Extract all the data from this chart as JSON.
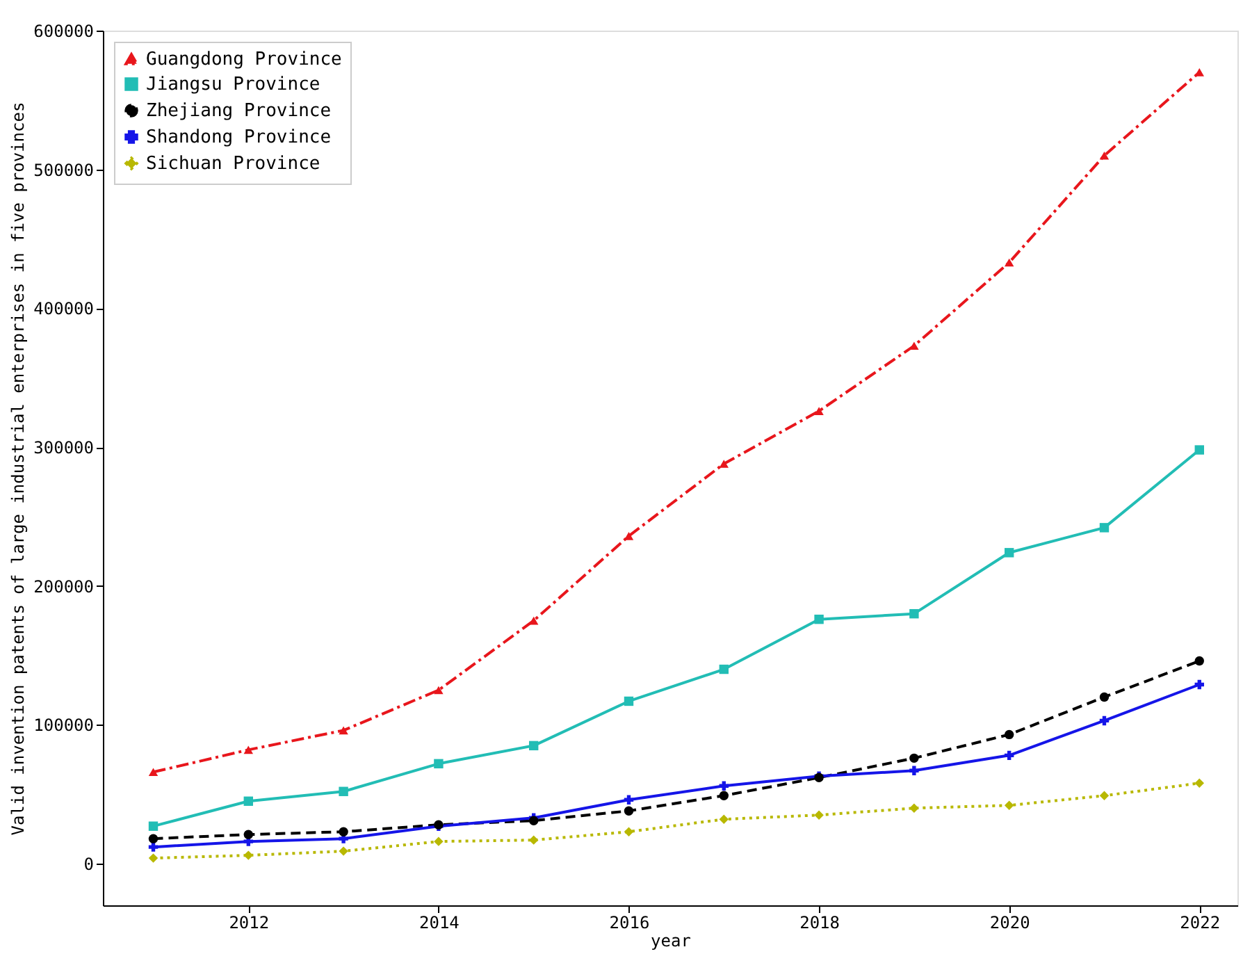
{
  "chart_data": {
    "type": "line",
    "xlabel": "year",
    "ylabel": "Valid invention patents of large industrial enterprises in five provinces",
    "x": [
      2011,
      2012,
      2013,
      2014,
      2015,
      2016,
      2017,
      2018,
      2019,
      2020,
      2021,
      2022
    ],
    "xlim": [
      2010.47,
      2022.4
    ],
    "xticks": [
      2012,
      2014,
      2016,
      2018,
      2020,
      2022
    ],
    "ylim": [
      -30000,
      600000
    ],
    "yticks": [
      0,
      100000,
      200000,
      300000,
      400000,
      500000,
      600000
    ],
    "grid": false,
    "legend": "top left",
    "series": [
      {
        "name": "Guangdong Province",
        "color": "#e8161c",
        "marker": "triangle",
        "line_style": "dashdot",
        "values": [
          66000,
          82000,
          96000,
          125000,
          175000,
          236000,
          288000,
          326000,
          373000,
          433000,
          510000,
          570000
        ]
      },
      {
        "name": "Jiangsu Province",
        "color": "#22bdb5",
        "marker": "square",
        "line_style": "solid",
        "values": [
          27000,
          45000,
          52000,
          72000,
          85000,
          117000,
          140000,
          176000,
          180000,
          224000,
          242000,
          298000
        ]
      },
      {
        "name": "Zhejiang Province",
        "color": "#000000",
        "marker": "circle",
        "line_style": "dashed",
        "values": [
          18000,
          21000,
          23000,
          28000,
          31000,
          38000,
          49000,
          62000,
          76000,
          93000,
          120000,
          146000
        ]
      },
      {
        "name": "Shandong Province",
        "color": "#1515e8",
        "marker": "cross",
        "line_style": "solid",
        "values": [
          12000,
          16000,
          18000,
          27000,
          33000,
          46000,
          56000,
          63000,
          67000,
          78000,
          103000,
          129000
        ]
      },
      {
        "name": "Sichuan Province",
        "color": "#b8b800",
        "marker": "diamond",
        "line_style": "dotted",
        "values": [
          4000,
          6000,
          9000,
          16000,
          17000,
          23000,
          32000,
          35000,
          40000,
          42000,
          49000,
          58000
        ]
      }
    ]
  }
}
